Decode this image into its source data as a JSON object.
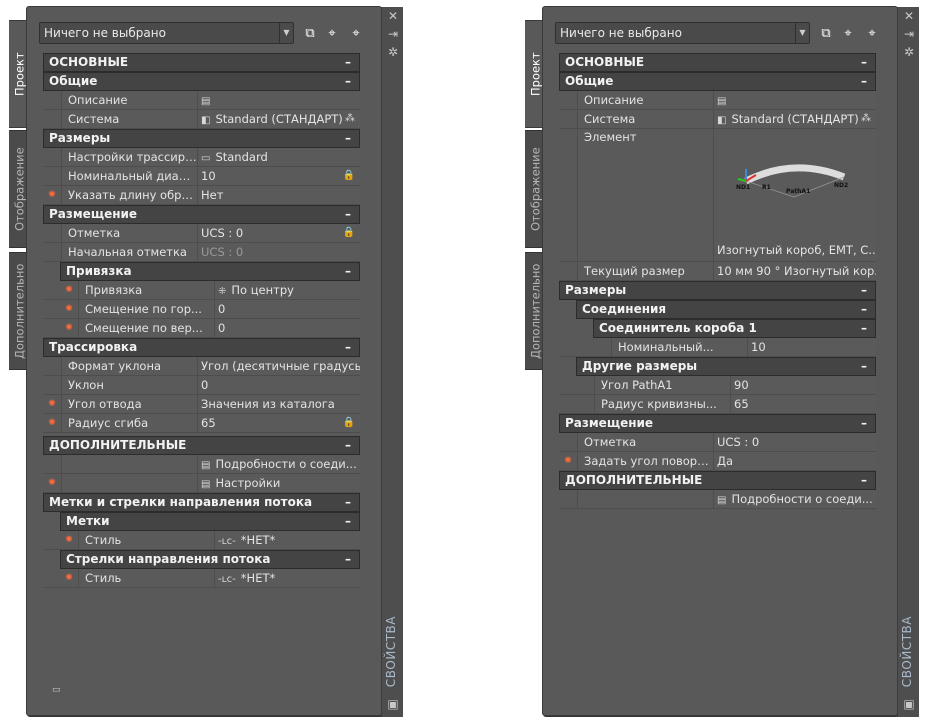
{
  "panels": [
    {
      "selector": "Ничего не выбрано",
      "tabs": [
        "Проект",
        "Отображение",
        "Дополнительно"
      ],
      "strip_title": "СВОЙСТВА",
      "rows": [
        {
          "t": "cat",
          "l": 0,
          "text": "ОСНОВНЫЕ"
        },
        {
          "t": "cat",
          "l": 0,
          "text": "Общие"
        },
        {
          "t": "p",
          "l": 0,
          "label": "Описание",
          "icon": "table-icon",
          "value": ""
        },
        {
          "t": "p",
          "l": 0,
          "label": "Система",
          "icon": "system-icon",
          "value": "Standard (СТАНДАРТ)",
          "trail": "binoculars-icon"
        },
        {
          "t": "cat",
          "l": 0,
          "text": "Размеры"
        },
        {
          "t": "p",
          "l": 0,
          "label": "Настройки трассиро...",
          "icon": "routing-icon",
          "value": "Standard"
        },
        {
          "t": "p",
          "l": 0,
          "label": "Номинальный диам...",
          "value": "10",
          "trail": "lock-icon"
        },
        {
          "t": "p",
          "l": 0,
          "star": true,
          "label": "Указать длину обрез...",
          "value": "Нет"
        },
        {
          "t": "cat",
          "l": 0,
          "text": "Размещение"
        },
        {
          "t": "p",
          "l": 0,
          "label": "Отметка",
          "value": "UCS : 0",
          "trail": "lock-icon"
        },
        {
          "t": "p",
          "l": 0,
          "label": "Начальная отметка",
          "value": "UCS : 0",
          "grey": true
        },
        {
          "t": "cat",
          "l": 1,
          "text": "Привязка"
        },
        {
          "t": "p",
          "l": 1,
          "star": true,
          "label": "Привязка",
          "icon": "justify-icon",
          "value": "По центру"
        },
        {
          "t": "p",
          "l": 1,
          "star": true,
          "label": "Смещение по гор...",
          "value": "0"
        },
        {
          "t": "p",
          "l": 1,
          "star": true,
          "label": "Смещение по вер...",
          "value": "0"
        },
        {
          "t": "cat",
          "l": 0,
          "text": "Трассировка"
        },
        {
          "t": "p",
          "l": 0,
          "label": "Формат уклона",
          "value": "Угол (десятичные градусы)"
        },
        {
          "t": "p",
          "l": 0,
          "label": "Уклон",
          "value": "0"
        },
        {
          "t": "p",
          "l": 0,
          "star": true,
          "label": "Угол отвода",
          "value": "Значения из каталога"
        },
        {
          "t": "p",
          "l": 0,
          "star": true,
          "label": "Радиус сгиба",
          "value": "65",
          "trail": "lock-icon"
        },
        {
          "t": "cat",
          "l": 0,
          "text": "ДОПОЛНИТЕЛЬНЫЕ",
          "gap": true
        },
        {
          "t": "p",
          "l": 0,
          "label": "",
          "icon": "table-icon",
          "value": "Подробности о соеди..."
        },
        {
          "t": "p",
          "l": 0,
          "star": true,
          "label": "",
          "icon": "table-icon",
          "value": "Настройки"
        },
        {
          "t": "cat",
          "l": 0,
          "text": "Метки и стрелки направления потока"
        },
        {
          "t": "cat",
          "l": 1,
          "text": "Метки"
        },
        {
          "t": "p",
          "l": 1,
          "star": true,
          "label": "Стиль",
          "icon": "label-style-icon",
          "value": "*НЕТ*"
        },
        {
          "t": "cat",
          "l": 1,
          "text": "Стрелки направления потока"
        },
        {
          "t": "p",
          "l": 1,
          "star": true,
          "label": "Стиль",
          "icon": "label-style-icon",
          "value": "*НЕТ*"
        }
      ]
    },
    {
      "selector": "Ничего не выбрано",
      "tabs": [
        "Проект",
        "Отображение",
        "Дополнительно"
      ],
      "strip_title": "СВОЙСТВА",
      "rows": [
        {
          "t": "cat",
          "l": 0,
          "text": "ОСНОВНЫЕ"
        },
        {
          "t": "cat",
          "l": 0,
          "text": "Общие"
        },
        {
          "t": "p",
          "l": 0,
          "label": "Описание",
          "icon": "table-icon",
          "value": ""
        },
        {
          "t": "p",
          "l": 0,
          "label": "Система",
          "icon": "system-icon",
          "value": "Standard (СТАНДАРТ)",
          "trail": "binoculars-icon"
        },
        {
          "t": "elem",
          "l": 0,
          "label": "Элемент",
          "value": "Изогнутый короб, EMT, C...",
          "preview_labels": [
            "ND1",
            "R1",
            "PathA1",
            "ND2"
          ]
        },
        {
          "t": "p",
          "l": 0,
          "label": "Текущий размер",
          "value": "10 мм 90 ° Изогнутый кор..."
        },
        {
          "t": "cat",
          "l": 0,
          "text": "Размеры"
        },
        {
          "t": "cat",
          "l": 1,
          "text": "Соединения"
        },
        {
          "t": "cat",
          "l": 2,
          "text": "Соединитель короба 1"
        },
        {
          "t": "p",
          "l": 2,
          "label": "Номинальный...",
          "value": "10"
        },
        {
          "t": "cat",
          "l": 1,
          "text": "Другие размеры"
        },
        {
          "t": "p",
          "l": 1,
          "label": "Угол PathA1",
          "value": "90"
        },
        {
          "t": "p",
          "l": 1,
          "label": "Радиус кривизны...",
          "value": "65"
        },
        {
          "t": "cat",
          "l": 0,
          "text": "Размещение"
        },
        {
          "t": "p",
          "l": 0,
          "label": "Отметка",
          "value": "UCS : 0"
        },
        {
          "t": "p",
          "l": 0,
          "star": true,
          "label": "Задать угол поворот...",
          "value": "Да"
        },
        {
          "t": "cat",
          "l": 0,
          "text": "ДОПОЛНИТЕЛЬНЫЕ"
        },
        {
          "t": "p",
          "l": 0,
          "label": "",
          "icon": "table-icon",
          "value": "Подробности о соеди..."
        }
      ]
    }
  ],
  "collapse_symbol": "–",
  "colors": {
    "panel": "#595959",
    "header": "#444444",
    "star": "#ff6a3a",
    "strip_text": "#a9b9c9"
  }
}
